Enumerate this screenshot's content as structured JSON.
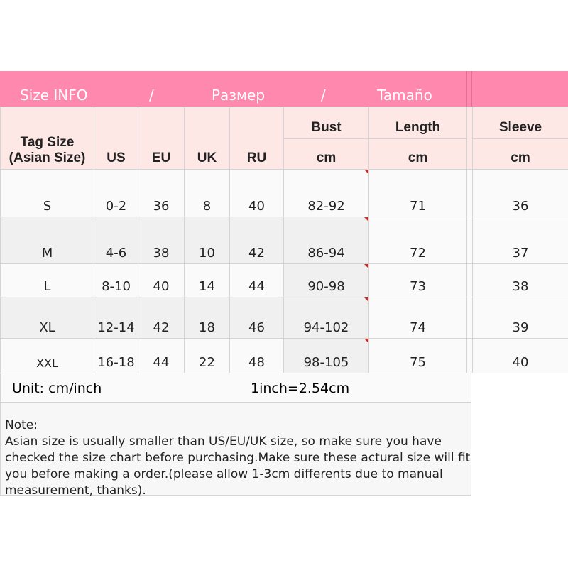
{
  "banner": {
    "title": "Size INFO",
    "sep1": "/",
    "ru": "Размер",
    "sep2": "/",
    "es": "Tamaño"
  },
  "headers": {
    "tag": "Tag Size",
    "tag2": "(Asian Size)",
    "us": "US",
    "eu": "EU",
    "uk": "UK",
    "ru": "RU",
    "bust": "Bust",
    "length": "Length",
    "sleeve": "Sleeve",
    "unit": "cm"
  },
  "rows": [
    {
      "tag": "S",
      "us": "0-2",
      "eu": "36",
      "uk": "8",
      "ru": "40",
      "bust": "82-92",
      "length": "71",
      "sleeve": "36"
    },
    {
      "tag": "M",
      "us": "4-6",
      "eu": "38",
      "uk": "10",
      "ru": "42",
      "bust": "86-94",
      "length": "72",
      "sleeve": "37"
    },
    {
      "tag": "L",
      "us": "8-10",
      "eu": "40",
      "uk": "14",
      "ru": "44",
      "bust": "90-98",
      "length": "73",
      "sleeve": "38"
    },
    {
      "tag": "XL",
      "us": "12-14",
      "eu": "42",
      "uk": "18",
      "ru": "46",
      "bust": "94-102",
      "length": "74",
      "sleeve": "39"
    },
    {
      "tag": "XXL",
      "us": "16-18",
      "eu": "44",
      "uk": "22",
      "ru": "48",
      "bust": "98-105",
      "length": "75",
      "sleeve": "40"
    }
  ],
  "unit": {
    "label": "Unit: cm/inch",
    "conversion": "1inch=2.54cm"
  },
  "note": {
    "title": "Note:",
    "body": "Asian size is usually smaller than US/EU/UK size, so make sure you have checked the size chart before purchasing.Make sure these actural size will fit you before making a order.(please allow 1-3cm differents due to manual measurement, thanks)."
  }
}
